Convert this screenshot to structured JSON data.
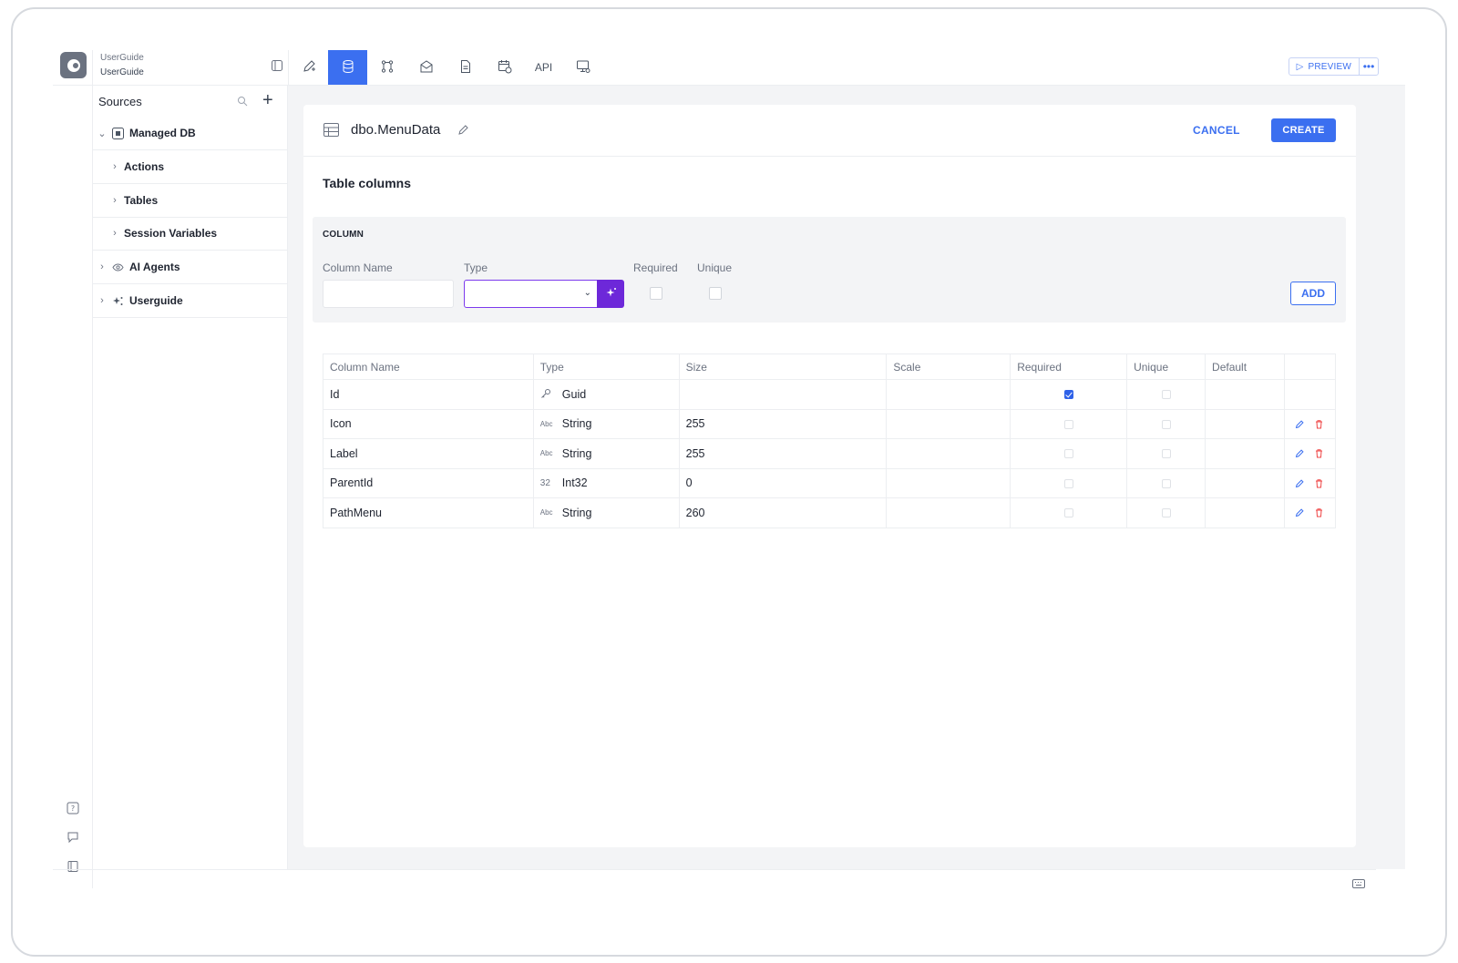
{
  "brand": {
    "workspace": "UserGuide",
    "app": "UserGuide"
  },
  "toolbar": {
    "tabs": [
      {
        "icon": "pen-plus-icon",
        "label": ""
      },
      {
        "icon": "database-icon",
        "label": ""
      },
      {
        "icon": "workflow-icon",
        "label": ""
      },
      {
        "icon": "mail-icon",
        "label": ""
      },
      {
        "icon": "document-icon",
        "label": ""
      },
      {
        "icon": "calendar-clock-icon",
        "label": ""
      },
      {
        "icon": "api-icon",
        "label": "API"
      },
      {
        "icon": "monitor-settings-icon",
        "label": ""
      }
    ],
    "active_index": 1,
    "preview_label": "PREVIEW"
  },
  "sources": {
    "title": "Sources",
    "items": [
      {
        "label": "Managed DB",
        "icon": "managed-db-icon",
        "expanded": true
      },
      {
        "label": "Actions",
        "child": true
      },
      {
        "label": "Tables",
        "child": true
      },
      {
        "label": "Session Variables",
        "child": true
      },
      {
        "label": "AI Agents",
        "icon": "eye-icon"
      },
      {
        "label": "Userguide",
        "icon": "sparkle-icon"
      }
    ]
  },
  "editor": {
    "table_name": "dbo.MenuData",
    "cancel_label": "CANCEL",
    "create_label": "CREATE",
    "section_title": "Table columns",
    "column_form": {
      "heading": "COLUMN",
      "name_label": "Column Name",
      "name_value": "",
      "type_label": "Type",
      "type_value": "",
      "required_label": "Required",
      "unique_label": "Unique",
      "add_label": "ADD"
    },
    "table": {
      "headers": [
        "Column Name",
        "Type",
        "Size",
        "Scale",
        "Required",
        "Unique",
        "Default",
        ""
      ],
      "rows": [
        {
          "name": "Id",
          "type_icon": "Key",
          "type": "Guid",
          "size": "",
          "scale": "",
          "required": true,
          "unique": false,
          "default": "",
          "editable": false
        },
        {
          "name": "Icon",
          "type_icon": "Abc",
          "type": "String",
          "size": "255",
          "scale": "",
          "required": false,
          "unique": false,
          "default": "",
          "editable": true
        },
        {
          "name": "Label",
          "type_icon": "Abc",
          "type": "String",
          "size": "255",
          "scale": "",
          "required": false,
          "unique": false,
          "default": "",
          "editable": true
        },
        {
          "name": "ParentId",
          "type_icon": "32",
          "type": "Int32",
          "size": "0",
          "scale": "",
          "required": false,
          "unique": false,
          "default": "",
          "editable": true
        },
        {
          "name": "PathMenu",
          "type_icon": "Abc",
          "type": "String",
          "size": "260",
          "scale": "",
          "required": false,
          "unique": false,
          "default": "",
          "editable": true
        }
      ]
    }
  },
  "colors": {
    "accent": "#3b6ff0",
    "ai": "#6d28d9",
    "danger": "#ef4444"
  }
}
